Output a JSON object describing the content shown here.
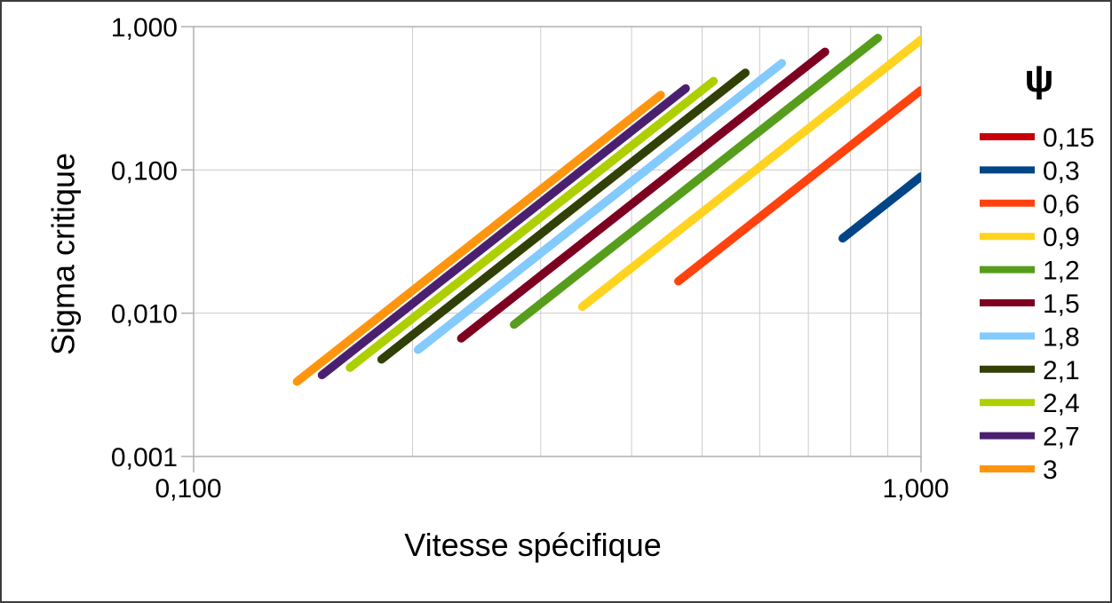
{
  "window": {
    "background": "#ffffff",
    "border_color": "#3c3c3c"
  },
  "chart_data": {
    "type": "line",
    "title": "",
    "xlabel": "Vitesse spécifique",
    "ylabel": "Sigma critique",
    "legend_title": "ψ",
    "legend_position": "right",
    "x_scale": "log",
    "y_scale": "log",
    "xlim": [
      0.1,
      1.0
    ],
    "ylim": [
      0.001,
      1.0
    ],
    "grid": true,
    "x_ticks": [
      {
        "value": 0.1,
        "label": "0,100"
      },
      {
        "value": 1.0,
        "label": "1,000"
      }
    ],
    "y_ticks": [
      {
        "value": 1.0,
        "label": "1,000"
      },
      {
        "value": 0.1,
        "label": "0,100"
      },
      {
        "value": 0.01,
        "label": "0,010"
      },
      {
        "value": 0.001,
        "label": "0,001"
      }
    ],
    "x_minor_gridlines": [
      0.2,
      0.3,
      0.4,
      0.5,
      0.6,
      0.7,
      0.8,
      0.9
    ],
    "styles": {
      "grid_color": "#cccccc",
      "frame_color": "#b0b0b0",
      "tick_color": "#b0b0b0",
      "series_line_width": 9.5,
      "legend_swatch_width": 62,
      "legend_swatch_height": 8
    },
    "series": [
      {
        "name": "0,15",
        "psi": 0.15,
        "color": "#c5000b",
        "points": []
      },
      {
        "name": "0,3",
        "psi": 0.3,
        "color": "#004586",
        "points": [
          [
            0.7803,
            0.0333
          ],
          [
            1.0,
            0.09
          ]
        ]
      },
      {
        "name": "0,6",
        "psi": 0.6,
        "color": "#ff420e",
        "points": [
          [
            0.4639,
            0.0167
          ],
          [
            1.0,
            0.36
          ]
        ]
      },
      {
        "name": "0,9",
        "psi": 0.9,
        "color": "#ffd320",
        "points": [
          [
            0.3422,
            0.0111
          ],
          [
            1.0,
            0.81
          ]
        ]
      },
      {
        "name": "1,2",
        "psi": 1.2,
        "color": "#579d1c",
        "points": [
          [
            0.2758,
            0.00833
          ],
          [
            0.8723,
            0.8333
          ]
        ]
      },
      {
        "name": "1,5",
        "psi": 1.5,
        "color": "#7e0021",
        "points": [
          [
            0.2333,
            0.00667
          ],
          [
            0.7379,
            0.6667
          ]
        ]
      },
      {
        "name": "1,8",
        "psi": 1.8,
        "color": "#83caff",
        "points": [
          [
            0.2035,
            0.00556
          ],
          [
            0.6436,
            0.5556
          ]
        ]
      },
      {
        "name": "2,1",
        "psi": 2.1,
        "color": "#314004",
        "points": [
          [
            0.1813,
            0.00476
          ],
          [
            0.5734,
            0.4762
          ]
        ]
      },
      {
        "name": "2,4",
        "psi": 2.4,
        "color": "#aecf00",
        "points": [
          [
            0.164,
            0.00417
          ],
          [
            0.5186,
            0.4167
          ]
        ]
      },
      {
        "name": "2,7",
        "psi": 2.7,
        "color": "#4b1f6f",
        "points": [
          [
            0.1501,
            0.0037
          ],
          [
            0.4747,
            0.3704
          ]
        ]
      },
      {
        "name": "3",
        "psi": 3.0,
        "color": "#ff950e",
        "points": [
          [
            0.1387,
            0.00333
          ],
          [
            0.4387,
            0.3333
          ]
        ]
      }
    ]
  }
}
